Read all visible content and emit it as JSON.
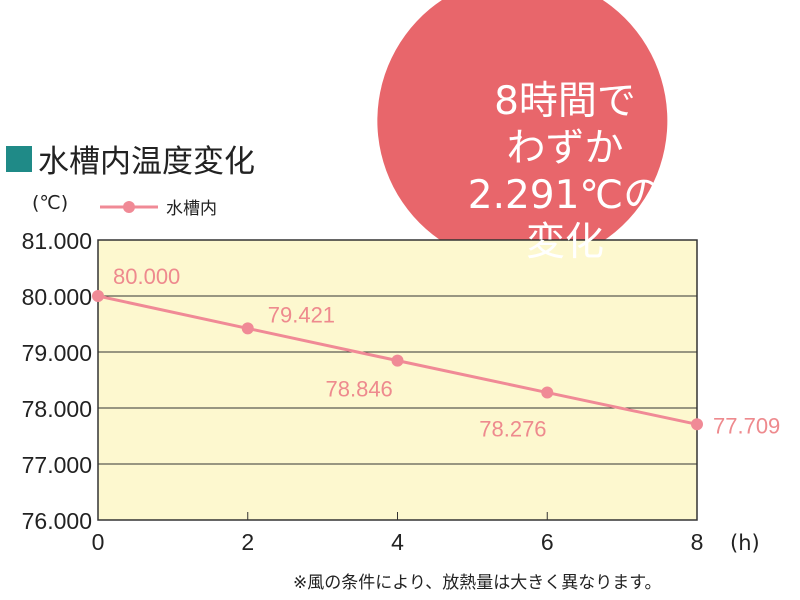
{
  "chart_data": {
    "type": "line",
    "title": "水槽内温度変化",
    "ylabel": "(℃)",
    "xlabel": "(h)",
    "x": [
      0,
      2,
      4,
      6,
      8
    ],
    "xticks": [
      "0",
      "2",
      "4",
      "6",
      "8"
    ],
    "ylim": [
      76,
      81
    ],
    "yticks": [
      "76.000",
      "77.000",
      "78.000",
      "79.000",
      "80.000",
      "81.000"
    ],
    "grid": true,
    "legend_position": "top-left",
    "series": [
      {
        "name": "水槽内",
        "values": [
          80.0,
          79.421,
          78.846,
          78.276,
          77.709
        ],
        "labels": [
          "80.000",
          "79.421",
          "78.846",
          "78.276",
          "77.709"
        ]
      }
    ],
    "annotation": [
      "8時間で",
      "わずか",
      "2.291℃の",
      "変化"
    ],
    "footnote": "※風の条件により、放熱量は大きく異なります。",
    "colors": {
      "line": "#f08a96",
      "plot_bg": "#fdf8cf",
      "bubble": "#e8666b",
      "title_square": "#1f8a87",
      "label": "#ee8a8e"
    }
  }
}
